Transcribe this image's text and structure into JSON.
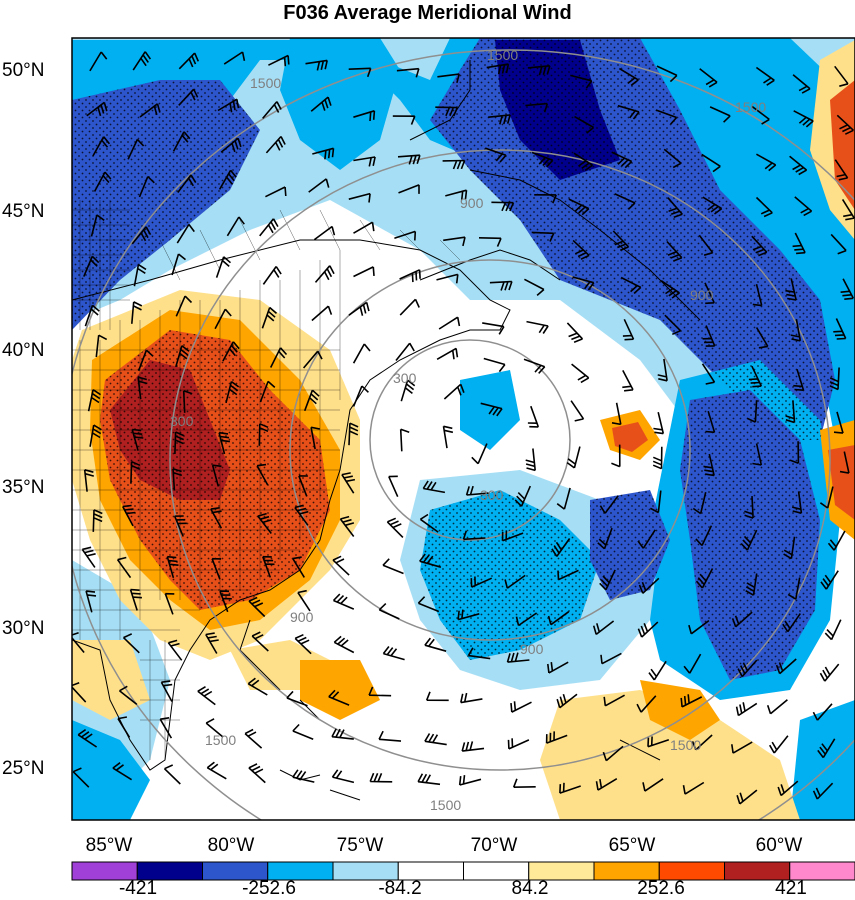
{
  "title": "F036 Average Meridional Wind",
  "lat_labels": [
    "50°N",
    "45°N",
    "40°N",
    "35°N",
    "30°N",
    "25°N"
  ],
  "lon_labels": [
    "85°W",
    "80°W",
    "75°W",
    "70°W",
    "65°W",
    "60°W"
  ],
  "contour_labels": [
    "1500",
    "900",
    "300",
    "1500",
    "300",
    "1500",
    "900",
    "900",
    "300",
    "900",
    "1500",
    "1500",
    "1500"
  ],
  "colorbar": {
    "labels": [
      "-421",
      "-252.6",
      "-84.2",
      "84.2",
      "252.6",
      "421"
    ],
    "colors": [
      "#a040d8",
      "#00008c",
      "#2d55cc",
      "#00b0f0",
      "#a6dff5",
      "#ffffff",
      "#ffffff",
      "#ffea9a",
      "#ffa500",
      "#ff4a00",
      "#b02020",
      "#ff88cc"
    ]
  },
  "palette": {
    "dark_red": "#b02020",
    "red": "#e8501a",
    "orange": "#ffa500",
    "yellow": "#ffe08a",
    "light_blue": "#a6dff5",
    "cyan": "#00b0f0",
    "blue": "#2d55cc",
    "navy": "#00008c"
  }
}
